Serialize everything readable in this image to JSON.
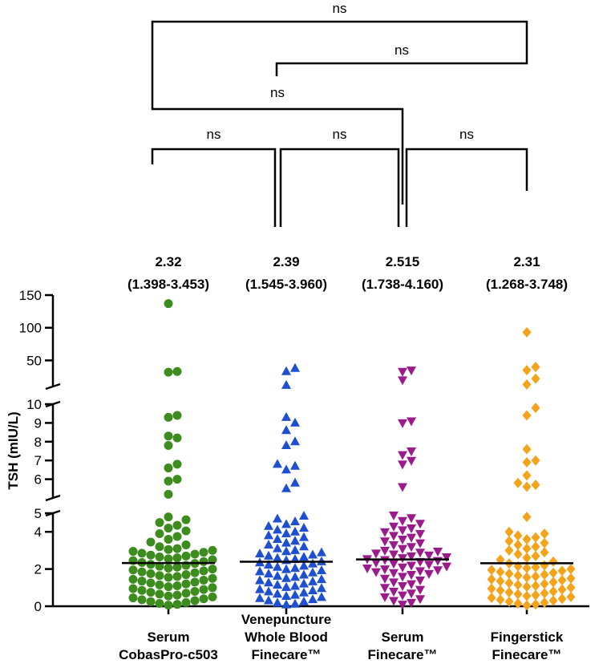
{
  "chart_data": {
    "type": "scatter",
    "subtype": "dot-plot with median lines and broken y-axis",
    "title": "",
    "ylabel": "TSH (mIU/L)",
    "ylim": [
      0,
      150
    ],
    "y_axis_segments": [
      {
        "range": [
          0,
          5
        ],
        "ticks": [
          0,
          2,
          4
        ]
      },
      {
        "range": [
          5,
          10
        ],
        "ticks": [
          5,
          6,
          7,
          8,
          9,
          10
        ]
      },
      {
        "range": [
          10,
          150
        ],
        "ticks": [
          50,
          100,
          150
        ]
      }
    ],
    "groups": [
      {
        "name_lines": [
          "Serum",
          "CobasPro-c503"
        ],
        "median_label": "2.32",
        "range_label": "(1.398-3.453)",
        "median": 2.32,
        "marker": "circle",
        "color": "#3d8c1e",
        "values": [
          0.06,
          0.1,
          0.15,
          0.2,
          0.25,
          0.3,
          0.35,
          0.4,
          0.45,
          0.5,
          0.55,
          0.6,
          0.65,
          0.7,
          0.75,
          0.8,
          0.85,
          0.9,
          0.95,
          1.0,
          1.05,
          1.1,
          1.15,
          1.2,
          1.25,
          1.3,
          1.35,
          1.4,
          1.45,
          1.5,
          1.55,
          1.6,
          1.65,
          1.7,
          1.75,
          1.8,
          1.85,
          1.9,
          1.95,
          2.0,
          2.05,
          2.1,
          2.15,
          2.2,
          2.25,
          2.3,
          2.35,
          2.4,
          2.45,
          2.5,
          2.55,
          2.6,
          2.65,
          2.7,
          2.75,
          2.8,
          2.85,
          2.9,
          2.95,
          3.0,
          3.05,
          3.1,
          3.2,
          3.3,
          3.45,
          3.6,
          3.75,
          3.9,
          4.05,
          4.2,
          4.35,
          4.5,
          4.65,
          4.8,
          5.2,
          5.9,
          6.0,
          6.6,
          6.8,
          7.8,
          8.2,
          8.3,
          9.3,
          9.4,
          32,
          33,
          137
        ]
      },
      {
        "name_lines": [
          "Venepuncture",
          "Whole Blood",
          "Finecare™"
        ],
        "median_label": "2.39",
        "range_label": "(1.545-3.960)",
        "median": 2.39,
        "marker": "triangle-up",
        "color": "#1f4fd1",
        "values": [
          0.08,
          0.12,
          0.18,
          0.24,
          0.3,
          0.36,
          0.42,
          0.48,
          0.54,
          0.6,
          0.66,
          0.72,
          0.78,
          0.84,
          0.9,
          0.96,
          1.02,
          1.08,
          1.14,
          1.2,
          1.26,
          1.32,
          1.38,
          1.44,
          1.5,
          1.56,
          1.62,
          1.68,
          1.74,
          1.8,
          1.86,
          1.92,
          1.98,
          2.04,
          2.1,
          2.16,
          2.22,
          2.28,
          2.34,
          2.4,
          2.46,
          2.52,
          2.58,
          2.64,
          2.7,
          2.76,
          2.82,
          2.88,
          2.94,
          3.0,
          3.1,
          3.2,
          3.3,
          3.4,
          3.5,
          3.6,
          3.7,
          3.8,
          3.9,
          4.0,
          4.1,
          4.2,
          4.3,
          4.4,
          4.55,
          4.7,
          4.85,
          5.5,
          5.8,
          6.5,
          6.7,
          6.8,
          7.8,
          8.0,
          8.6,
          9.0,
          9.3,
          12,
          33,
          38
        ]
      },
      {
        "name_lines": [
          "Serum",
          "Finecare™"
        ],
        "median_label": "2.515",
        "range_label": "(1.738-4.160)",
        "median": 2.515,
        "marker": "triangle-down",
        "color": "#9b1a8c",
        "values": [
          0.1,
          0.2,
          0.3,
          0.4,
          0.5,
          0.6,
          0.7,
          0.8,
          0.9,
          1.0,
          1.1,
          1.2,
          1.3,
          1.4,
          1.5,
          1.6,
          1.7,
          1.75,
          1.8,
          1.85,
          1.9,
          1.95,
          2.0,
          2.05,
          2.1,
          2.15,
          2.2,
          2.25,
          2.3,
          2.35,
          2.4,
          2.45,
          2.5,
          2.55,
          2.6,
          2.65,
          2.7,
          2.75,
          2.8,
          2.85,
          2.9,
          2.95,
          3.0,
          3.1,
          3.2,
          3.3,
          3.4,
          3.5,
          3.6,
          3.7,
          3.8,
          3.9,
          4.0,
          4.1,
          4.2,
          4.3,
          4.45,
          4.6,
          4.75,
          4.9,
          5.6,
          6.8,
          7.0,
          7.3,
          7.5,
          9.0,
          9.1,
          20,
          33,
          35
        ]
      },
      {
        "name_lines": [
          "Fingerstick",
          "Finecare™"
        ],
        "median_label": "2.31",
        "range_label": "(1.268-3.748)",
        "median": 2.31,
        "marker": "diamond",
        "color": "#f5a31a",
        "values": [
          0.05,
          0.1,
          0.15,
          0.2,
          0.25,
          0.3,
          0.35,
          0.4,
          0.45,
          0.5,
          0.55,
          0.6,
          0.65,
          0.7,
          0.75,
          0.8,
          0.85,
          0.9,
          0.95,
          1.0,
          1.05,
          1.1,
          1.15,
          1.2,
          1.25,
          1.3,
          1.35,
          1.4,
          1.45,
          1.5,
          1.55,
          1.6,
          1.65,
          1.7,
          1.75,
          1.8,
          1.85,
          1.9,
          1.95,
          2.0,
          2.05,
          2.1,
          2.15,
          2.2,
          2.3,
          2.4,
          2.5,
          2.6,
          2.7,
          2.8,
          2.9,
          3.0,
          3.1,
          3.2,
          3.3,
          3.4,
          3.5,
          3.6,
          3.7,
          3.8,
          3.9,
          4.0,
          4.8,
          5.6,
          5.7,
          5.8,
          6.2,
          6.9,
          7.0,
          7.6,
          9.4,
          9.8,
          13,
          22,
          35,
          40,
          93
        ]
      }
    ],
    "comparisons": [
      {
        "groups": [
          1,
          4
        ],
        "label": "ns"
      },
      {
        "groups": [
          2,
          4
        ],
        "label": "ns"
      },
      {
        "groups": [
          1,
          3
        ],
        "label": "ns"
      },
      {
        "groups": [
          1,
          2
        ],
        "label": "ns"
      },
      {
        "groups": [
          2,
          3
        ],
        "label": "ns"
      },
      {
        "groups": [
          3,
          4
        ],
        "label": "ns"
      }
    ]
  }
}
